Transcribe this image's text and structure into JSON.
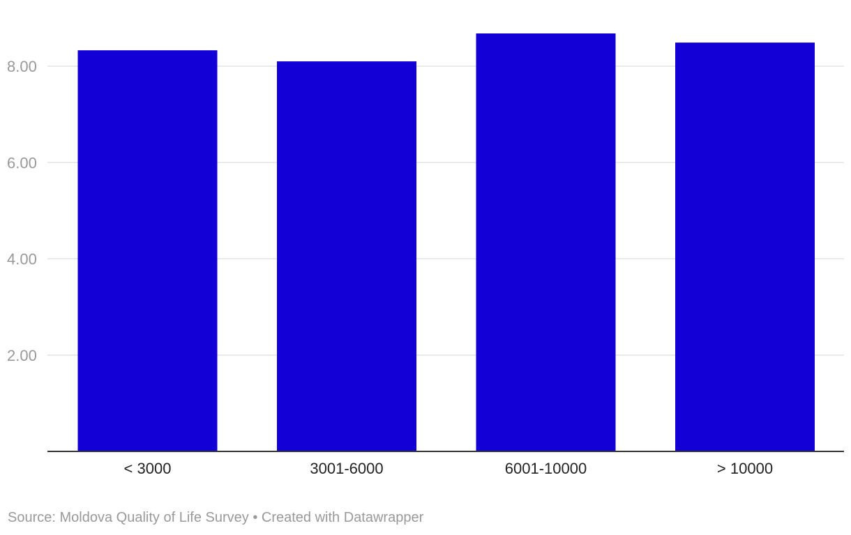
{
  "chart_data": {
    "type": "bar",
    "categories": [
      "< 3000",
      "3001-6000",
      "6001-10000",
      "> 10000"
    ],
    "values": [
      8.33,
      8.1,
      8.68,
      8.49
    ],
    "title": "",
    "xlabel": "",
    "ylabel": "",
    "ylim": [
      0,
      8.8
    ],
    "yticks": [
      2,
      4,
      6,
      8
    ],
    "ytick_labels": [
      "2.00",
      "4.00",
      "6.00",
      "8.00"
    ],
    "grid": true,
    "bar_color": "#1200d6"
  },
  "footer": {
    "source_prefix": "Source:",
    "source_name": "Moldova Quality of Life Survey",
    "separator": "•",
    "credit": "Created with Datawrapper"
  }
}
